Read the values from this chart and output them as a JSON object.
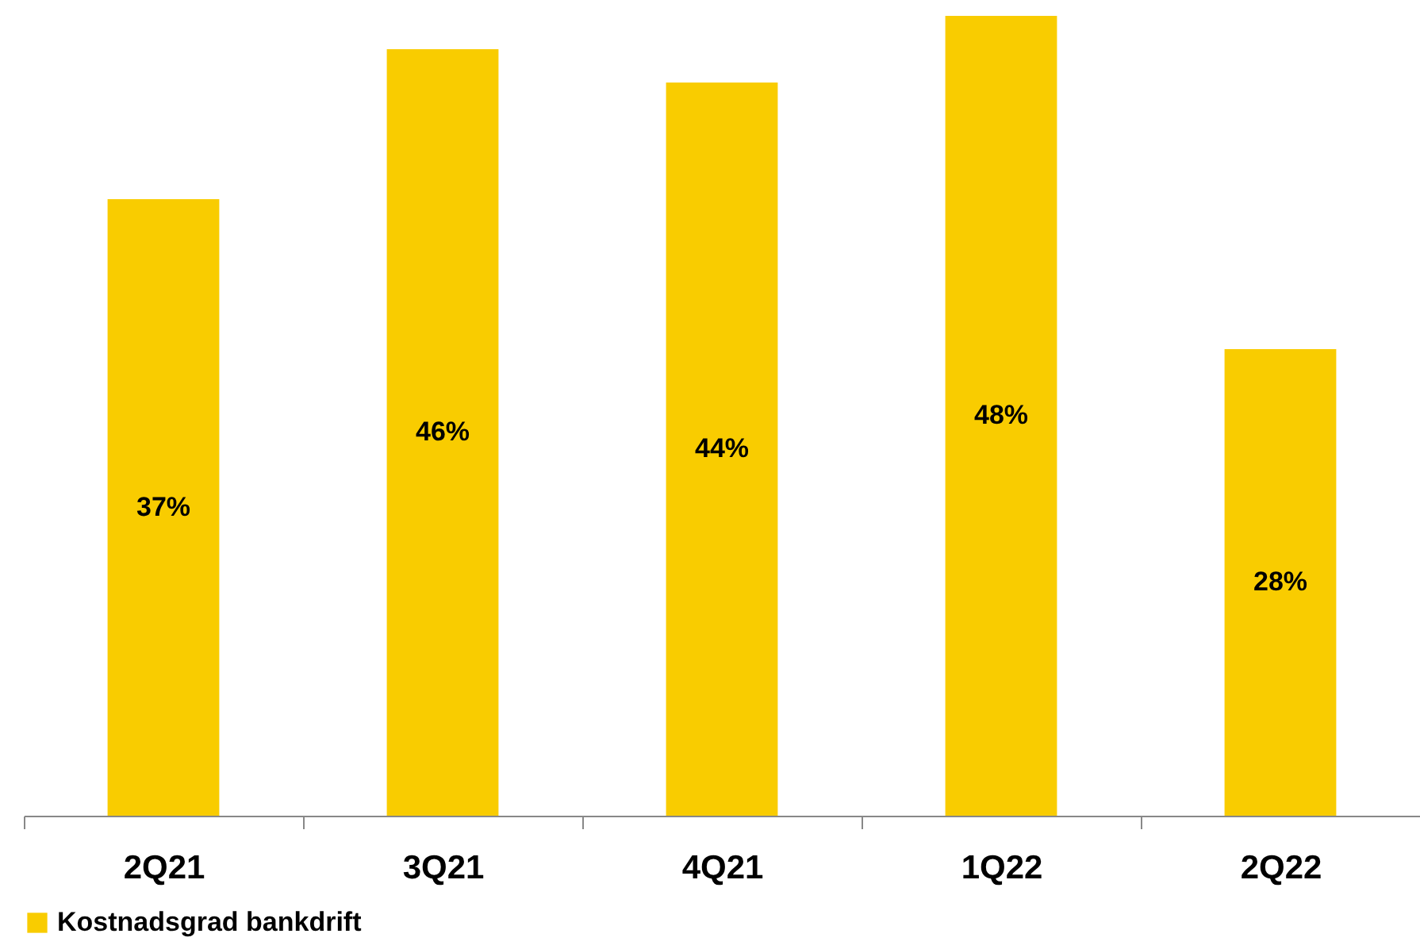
{
  "chart_data": {
    "type": "bar",
    "categories": [
      "2Q21",
      "3Q21",
      "4Q21",
      "1Q22",
      "2Q22"
    ],
    "series": [
      {
        "name": "Kostnadsgrad bankdrift",
        "color": "#f9cc00",
        "values": [
          37,
          46,
          44,
          48,
          28
        ],
        "value_labels": [
          "37%",
          "46%",
          "44%",
          "48%",
          "28%"
        ]
      }
    ],
    "legend": "bottom",
    "grid": false
  }
}
